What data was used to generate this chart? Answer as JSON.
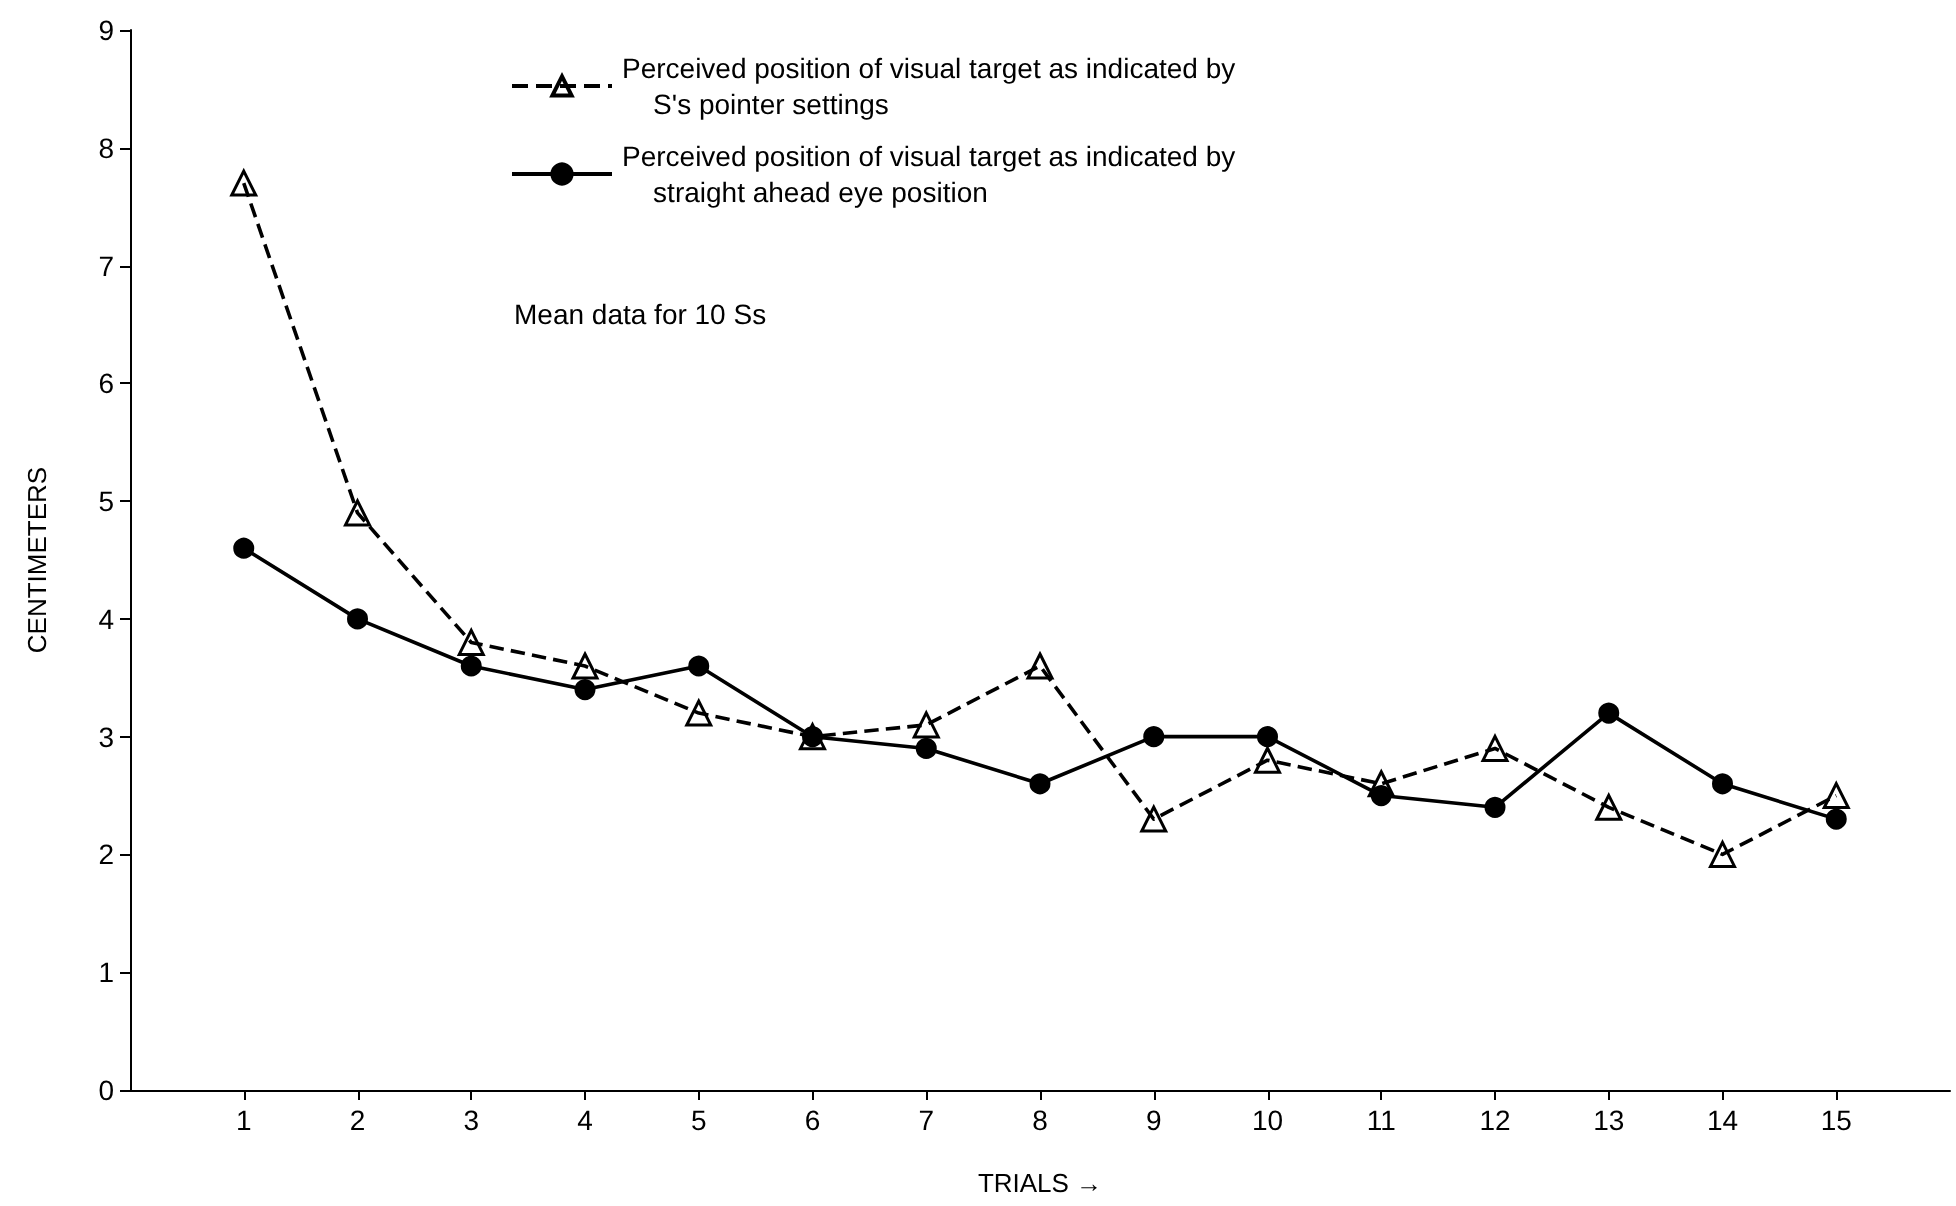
{
  "chart_data": {
    "type": "line",
    "xlabel": "TRIALS →",
    "ylabel": "CENTIMETERS",
    "x": [
      1,
      2,
      3,
      4,
      5,
      6,
      7,
      8,
      9,
      10,
      11,
      12,
      13,
      14,
      15
    ],
    "xlim": [
      0,
      16
    ],
    "xticks": [
      1,
      2,
      3,
      4,
      5,
      6,
      7,
      8,
      9,
      10,
      11,
      12,
      13,
      14,
      15
    ],
    "ylim": [
      0,
      9
    ],
    "yticks": [
      0,
      1,
      2,
      3,
      4,
      5,
      6,
      7,
      8,
      9
    ],
    "series": [
      {
        "name": "Perceived position of visual target as indicated by S's pointer settings",
        "color": "#000000",
        "marker": "triangle",
        "line_style": "dashed",
        "values": [
          7.7,
          4.9,
          3.8,
          3.6,
          3.2,
          3.0,
          3.1,
          3.6,
          2.3,
          2.8,
          2.6,
          2.9,
          2.4,
          2.0,
          2.5
        ]
      },
      {
        "name": "Perceived position of visual target as indicated by straight ahead eye position",
        "color": "#000000",
        "marker": "circle",
        "line_style": "solid",
        "values": [
          4.6,
          4.0,
          3.6,
          3.4,
          3.6,
          3.0,
          2.9,
          2.6,
          3.0,
          3.0,
          2.5,
          2.4,
          3.2,
          2.6,
          2.3
        ]
      }
    ],
    "annotations": [
      "Mean data for 10 Ss"
    ],
    "legend": "top left",
    "grid": false
  }
}
